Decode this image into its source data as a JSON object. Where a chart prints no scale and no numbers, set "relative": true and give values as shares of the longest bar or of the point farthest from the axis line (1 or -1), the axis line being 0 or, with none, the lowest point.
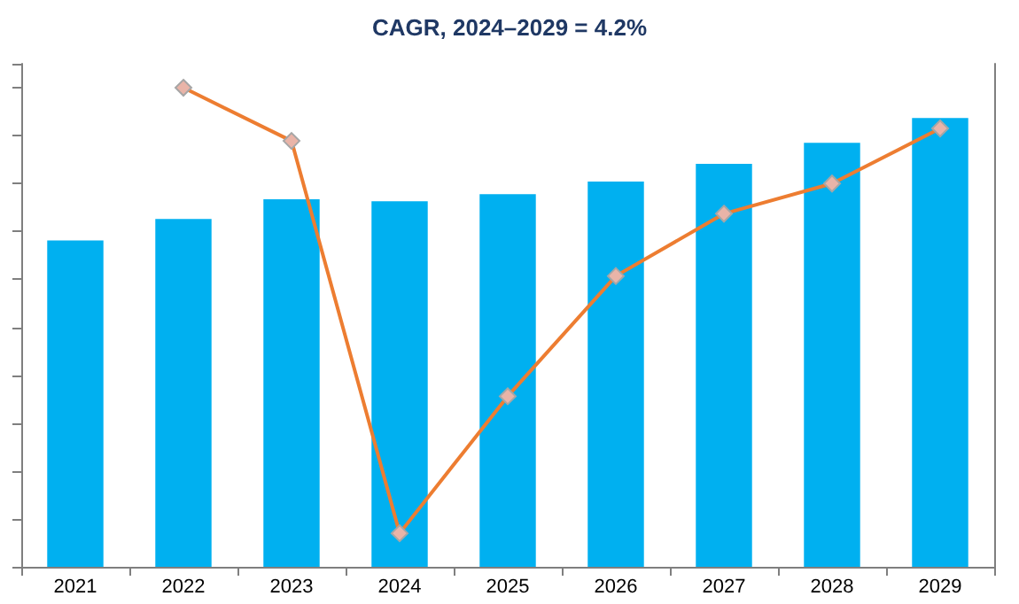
{
  "chart_data": {
    "type": "bar",
    "title": "CAGR, 2024–2029 = 4.2%",
    "relative": true,
    "grid": false,
    "tick_labels": "x",
    "categories": [
      "2021",
      "2022",
      "2023",
      "2024",
      "2025",
      "2026",
      "2027",
      "2028",
      "2029"
    ],
    "series": [
      {
        "color": "#00b0f0",
        "values": [
          0.681,
          0.726,
          0.767,
          0.763,
          0.778,
          0.804,
          0.841,
          0.885,
          0.937
        ]
      },
      {
        "type": "line",
        "color": "#ed7d31",
        "marker": "diamond",
        "line_style": "solid",
        "values": [
          null,
          1,
          0.889,
          0.07,
          0.356,
          0.607,
          0.737,
          0.8,
          0.915
        ]
      }
    ]
  }
}
